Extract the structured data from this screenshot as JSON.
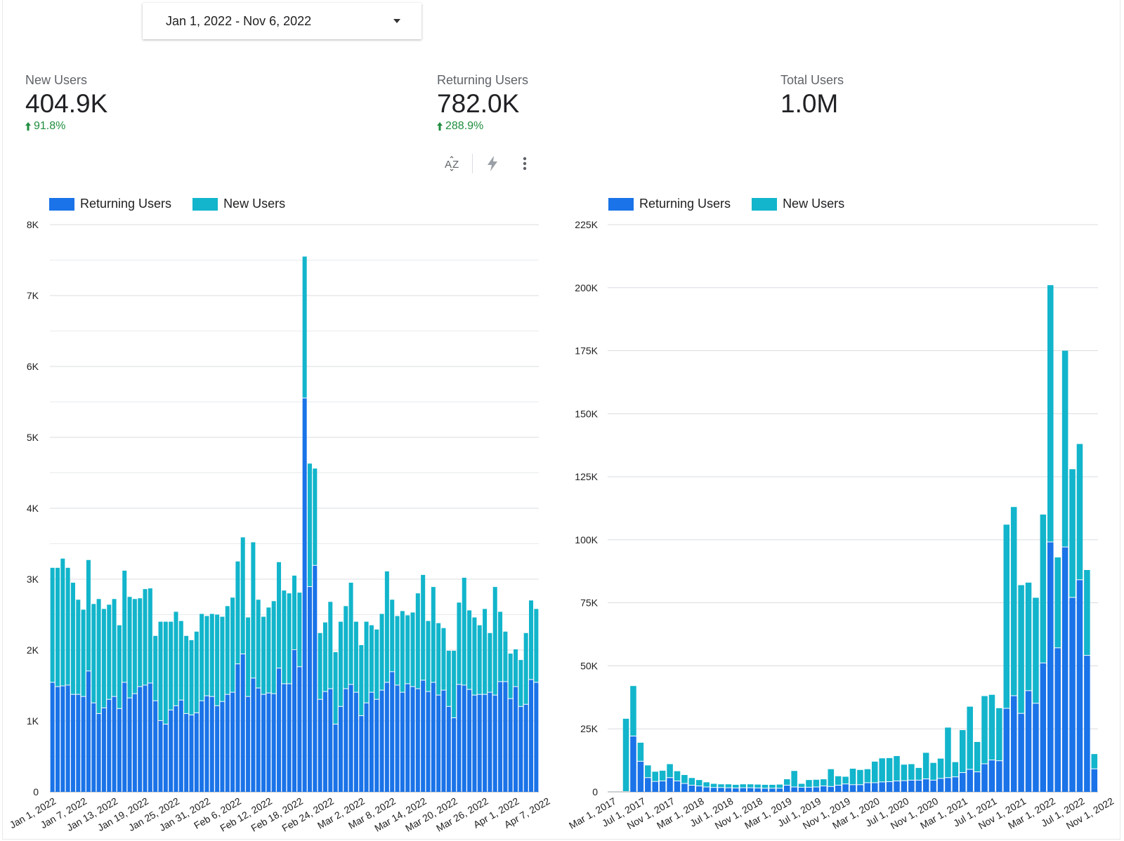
{
  "date_range": {
    "label": "Jan 1, 2022 - Nov 6, 2022"
  },
  "scorecards": [
    {
      "label": "New Users",
      "value": "404.9K",
      "delta": "91.8%"
    },
    {
      "label": "Returning Users",
      "value": "782.0K",
      "delta": "288.9%"
    },
    {
      "label": "Total Users",
      "value": "1.0M",
      "delta": ""
    }
  ],
  "toolbar": {
    "sort_icon": "sort-az-icon",
    "lightning_icon": "lightning-icon",
    "more_icon": "more-vert-icon"
  },
  "colors": {
    "returning": "#1a73e8",
    "new": "#12b5cb",
    "positive": "#1e8e3e",
    "grid": "#dadce0"
  },
  "chart_data": [
    {
      "type": "bar",
      "stacked": true,
      "legend": [
        "Returning Users",
        "New Users"
      ],
      "legend_position": "top-left",
      "grid": true,
      "ylim": [
        0,
        8000
      ],
      "y_ticks": [
        "0",
        "1K",
        "2K",
        "3K",
        "4K",
        "5K",
        "6K",
        "7K",
        "8K"
      ],
      "x_tick_labels": [
        "Jan 1, 2022",
        "Jan 7, 2022",
        "Jan 13, 2022",
        "Jan 19, 2022",
        "Jan 25, 2022",
        "Jan 31, 2022",
        "Feb 6, 2022",
        "Feb 12, 2022",
        "Feb 18, 2022",
        "Feb 24, 2022",
        "Mar 2, 2022",
        "Mar 8, 2022",
        "Mar 14, 2022",
        "Mar 20, 2022",
        "Mar 26, 2022",
        "Apr 1, 2022",
        "Apr 7, 2022"
      ],
      "series": [
        {
          "name": "Returning Users",
          "values": [
            1540,
            1480,
            1490,
            1500,
            1370,
            1370,
            1340,
            1700,
            1250,
            1100,
            1180,
            1300,
            1340,
            1170,
            1540,
            1320,
            1380,
            1480,
            1500,
            1530,
            1280,
            1000,
            950,
            1150,
            1210,
            1290,
            1100,
            1080,
            1110,
            1280,
            1350,
            1340,
            1210,
            1270,
            1370,
            1400,
            1800,
            1940,
            1340,
            1600,
            1460,
            1370,
            1390,
            1380,
            1740,
            1520,
            1520,
            2000,
            1760,
            5550,
            2890,
            3190,
            1300,
            1410,
            1450,
            950,
            1200,
            1450,
            1510,
            1400,
            1070,
            1250,
            1400,
            1300,
            1430,
            1540,
            1690,
            1500,
            1400,
            1520,
            1480,
            1450,
            1570,
            1410,
            1540,
            1360,
            1430,
            1200,
            1040,
            1510,
            1500,
            1440,
            1360,
            1370,
            1370,
            1400,
            1360,
            1550,
            1550,
            1310,
            1480,
            1200,
            1230,
            1580,
            1540
          ]
        },
        {
          "name": "New Users",
          "values": [
            1620,
            1680,
            1800,
            1660,
            1580,
            1340,
            1230,
            1570,
            1400,
            1620,
            1400,
            1340,
            1380,
            1180,
            1580,
            1430,
            1340,
            1250,
            1360,
            1340,
            920,
            1400,
            1450,
            1250,
            1330,
            1120,
            1100,
            1060,
            1150,
            1230,
            1130,
            1170,
            1290,
            1200,
            1250,
            1340,
            1450,
            1650,
            1120,
            1920,
            1250,
            1100,
            1210,
            1310,
            1500,
            1320,
            1280,
            1050,
            1050,
            2000,
            1740,
            1370,
            940,
            980,
            1230,
            1020,
            1200,
            1170,
            1440,
            1000,
            1000,
            1150,
            950,
            990,
            1080,
            1570,
            1020,
            980,
            1150,
            970,
            1050,
            1350,
            1490,
            1000,
            1350,
            1020,
            880,
            790,
            950,
            1160,
            1520,
            1120,
            1100,
            980,
            1210,
            840,
            1530,
            990,
            710,
            640,
            530,
            660,
            1010,
            1120,
            1040,
            890
          ]
        }
      ]
    },
    {
      "type": "bar",
      "stacked": true,
      "legend": [
        "Returning Users",
        "New Users"
      ],
      "legend_position": "top-left",
      "grid": true,
      "ylim": [
        0,
        225000
      ],
      "y_ticks": [
        "0",
        "25K",
        "50K",
        "75K",
        "100K",
        "125K",
        "150K",
        "175K",
        "200K",
        "225K"
      ],
      "x_tick_labels": [
        "Mar 1, 2017",
        "Jul 1, 2017",
        "Nov 1, 2017",
        "Mar 1, 2018",
        "Jul 1, 2018",
        "Nov 1, 2018",
        "Mar 1, 2019",
        "Jul 1, 2019",
        "Nov 1, 2019",
        "Mar 1, 2020",
        "Jul 1, 2020",
        "Nov 1, 2020",
        "Mar 1, 2021",
        "Jul 1, 2021",
        "Nov 1, 2021",
        "Mar 1, 2022",
        "Jul 1, 2022",
        "Nov 1, 2022"
      ],
      "series": [
        {
          "name": "Returning Users",
          "values": [
            0,
            0,
            0,
            22000,
            12000,
            5500,
            4000,
            4200,
            5500,
            4200,
            3200,
            2500,
            2200,
            1800,
            1600,
            1600,
            1500,
            1400,
            1500,
            1500,
            1400,
            1300,
            1300,
            1300,
            2500,
            1800,
            1700,
            1700,
            1800,
            2200,
            2000,
            2500,
            3000,
            2700,
            2700,
            3500,
            3500,
            3800,
            3900,
            4200,
            4300,
            4500,
            4500,
            5000,
            4500,
            5200,
            5500,
            5800,
            7500,
            8800,
            7800,
            11000,
            12500,
            12200,
            33000,
            38000,
            31000,
            40000,
            35000,
            51000,
            99000,
            57000,
            97000,
            77000,
            84000,
            54000,
            9000
          ]
        },
        {
          "name": "New Users",
          "values": [
            0,
            0,
            29000,
            20000,
            7500,
            5000,
            4000,
            4200,
            5500,
            4000,
            3500,
            3000,
            2500,
            2000,
            1600,
            1400,
            1500,
            1400,
            1500,
            1500,
            1500,
            1500,
            1500,
            1600,
            2500,
            6500,
            1500,
            3000,
            3000,
            2800,
            7000,
            3700,
            3000,
            6500,
            6000,
            5500,
            8500,
            9500,
            9500,
            10000,
            6500,
            6500,
            5000,
            10500,
            7000,
            8000,
            20000,
            6000,
            17000,
            25000,
            12000,
            27000,
            26000,
            21000,
            73000,
            75000,
            51000,
            43000,
            42000,
            59000,
            102000,
            36000,
            78000,
            51000,
            54000,
            34000,
            6000
          ]
        }
      ]
    }
  ]
}
